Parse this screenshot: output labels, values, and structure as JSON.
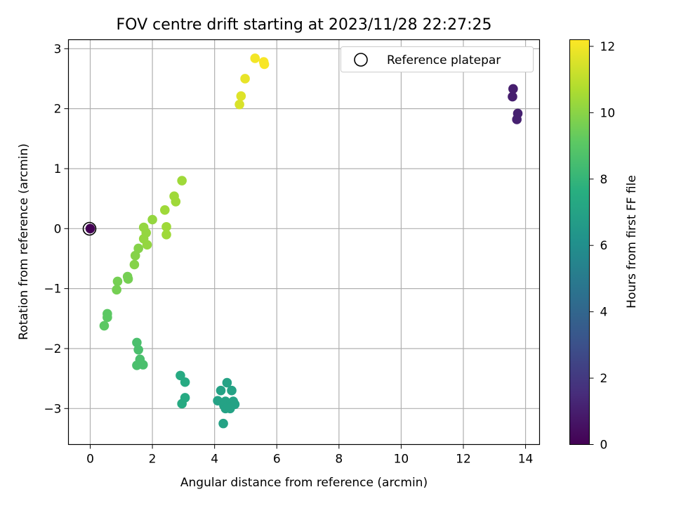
{
  "chart_data": {
    "type": "scatter",
    "title": "FOV centre drift starting at 2023/11/28 22:27:25",
    "xlabel": "Angular distance from reference (arcmin)",
    "ylabel": "Rotation from reference (arcmin)",
    "xlim": [
      -0.7,
      14.45
    ],
    "ylim": [
      -3.6,
      3.15
    ],
    "xticks": [
      0,
      2,
      4,
      6,
      8,
      10,
      12,
      14
    ],
    "yticks": [
      -3,
      -2,
      -1,
      0,
      1,
      2,
      3
    ],
    "grid": true,
    "legend": {
      "placement": "top-right",
      "entries": [
        "Reference platepar"
      ]
    },
    "reference_point": {
      "x": 0,
      "y": 0,
      "label": "Reference platepar"
    },
    "colorbar": {
      "label": "Hours from first FF file",
      "colormap": "viridis",
      "range": [
        0,
        12.2
      ],
      "ticks": [
        0,
        2,
        4,
        6,
        8,
        10,
        12
      ]
    },
    "points": [
      {
        "x": 0.0,
        "y": 0.0,
        "h": 0.0
      },
      {
        "x": 13.6,
        "y": 2.33,
        "h": 1.0
      },
      {
        "x": 13.58,
        "y": 2.2,
        "h": 1.0
      },
      {
        "x": 13.75,
        "y": 1.92,
        "h": 1.1
      },
      {
        "x": 13.72,
        "y": 1.82,
        "h": 1.1
      },
      {
        "x": 4.4,
        "y": -2.57,
        "h": 7.0
      },
      {
        "x": 4.2,
        "y": -2.7,
        "h": 7.0
      },
      {
        "x": 4.55,
        "y": -2.7,
        "h": 7.0
      },
      {
        "x": 4.1,
        "y": -2.87,
        "h": 7.0
      },
      {
        "x": 4.35,
        "y": -2.88,
        "h": 7.0
      },
      {
        "x": 4.6,
        "y": -2.88,
        "h": 7.0
      },
      {
        "x": 4.3,
        "y": -2.95,
        "h": 7.0
      },
      {
        "x": 4.45,
        "y": -2.97,
        "h": 7.0
      },
      {
        "x": 4.65,
        "y": -2.93,
        "h": 7.0
      },
      {
        "x": 4.35,
        "y": -3.0,
        "h": 7.0
      },
      {
        "x": 4.5,
        "y": -3.0,
        "h": 7.0
      },
      {
        "x": 4.28,
        "y": -3.25,
        "h": 7.0
      },
      {
        "x": 2.9,
        "y": -2.45,
        "h": 7.4
      },
      {
        "x": 3.05,
        "y": -2.56,
        "h": 7.4
      },
      {
        "x": 3.05,
        "y": -2.82,
        "h": 7.4
      },
      {
        "x": 2.95,
        "y": -2.92,
        "h": 7.4
      },
      {
        "x": 1.5,
        "y": -1.9,
        "h": 8.6
      },
      {
        "x": 1.55,
        "y": -2.02,
        "h": 8.6
      },
      {
        "x": 1.6,
        "y": -2.18,
        "h": 8.6
      },
      {
        "x": 1.7,
        "y": -2.27,
        "h": 8.6
      },
      {
        "x": 1.5,
        "y": -2.28,
        "h": 8.6
      },
      {
        "x": 0.55,
        "y": -1.42,
        "h": 9.1
      },
      {
        "x": 0.55,
        "y": -1.48,
        "h": 9.1
      },
      {
        "x": 0.45,
        "y": -1.62,
        "h": 9.1
      },
      {
        "x": 0.88,
        "y": -0.88,
        "h": 9.6
      },
      {
        "x": 0.85,
        "y": -1.02,
        "h": 9.6
      },
      {
        "x": 1.2,
        "y": -0.8,
        "h": 9.6
      },
      {
        "x": 1.22,
        "y": -0.84,
        "h": 9.6
      },
      {
        "x": 1.42,
        "y": -0.6,
        "h": 9.9
      },
      {
        "x": 1.45,
        "y": -0.45,
        "h": 9.9
      },
      {
        "x": 1.55,
        "y": -0.33,
        "h": 9.9
      },
      {
        "x": 1.72,
        "y": 0.02,
        "h": 10.2
      },
      {
        "x": 1.8,
        "y": -0.07,
        "h": 10.2
      },
      {
        "x": 1.72,
        "y": -0.17,
        "h": 10.2
      },
      {
        "x": 1.83,
        "y": -0.27,
        "h": 10.2
      },
      {
        "x": 2.0,
        "y": 0.15,
        "h": 10.2
      },
      {
        "x": 2.4,
        "y": 0.31,
        "h": 10.4
      },
      {
        "x": 2.45,
        "y": 0.03,
        "h": 10.4
      },
      {
        "x": 2.45,
        "y": -0.1,
        "h": 10.4
      },
      {
        "x": 2.7,
        "y": 0.54,
        "h": 10.4
      },
      {
        "x": 2.75,
        "y": 0.45,
        "h": 10.4
      },
      {
        "x": 2.95,
        "y": 0.8,
        "h": 10.4
      },
      {
        "x": 4.8,
        "y": 2.07,
        "h": 11.5
      },
      {
        "x": 4.85,
        "y": 2.21,
        "h": 11.6
      },
      {
        "x": 4.98,
        "y": 2.5,
        "h": 11.8
      },
      {
        "x": 5.3,
        "y": 2.84,
        "h": 12.0
      },
      {
        "x": 5.58,
        "y": 2.78,
        "h": 12.1
      },
      {
        "x": 5.6,
        "y": 2.74,
        "h": 12.1
      }
    ]
  }
}
